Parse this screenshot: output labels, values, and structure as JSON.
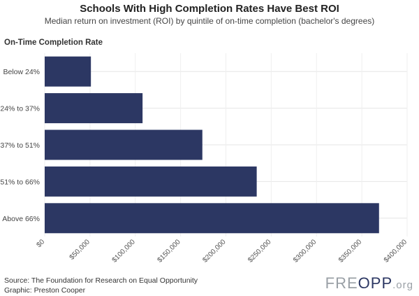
{
  "chart_data": {
    "type": "bar",
    "orientation": "horizontal",
    "title": "Schools With High Completion Rates Have Best ROI",
    "subtitle": "Median return on investment (ROI) by quintile of on-time completion (bachelor's degrees)",
    "ylabel": "On-Time Completion Rate",
    "xlabel": "",
    "categories": [
      "Below 24%",
      "24% to 37%",
      "37% to 51%",
      "51% to 66%",
      "Above 66%"
    ],
    "values": [
      51000,
      108000,
      174000,
      234000,
      369000
    ],
    "xlim": [
      0,
      400000
    ],
    "x_ticks": [
      0,
      50000,
      100000,
      150000,
      200000,
      250000,
      300000,
      350000,
      400000
    ],
    "x_tick_labels": [
      "$0",
      "$50,000",
      "$100,000",
      "$150,000",
      "$200,000",
      "$250,000",
      "$300,000",
      "$350,000",
      "$400,000"
    ],
    "bar_color": "#2c3763",
    "grid": true
  },
  "footer": {
    "source": "Source: The Foundation for Research on Equal Opportunity",
    "graphic": "Graphic: Preston Cooper"
  },
  "logo": {
    "free": "FRE",
    "opp": "OPP",
    "org": ".org"
  }
}
